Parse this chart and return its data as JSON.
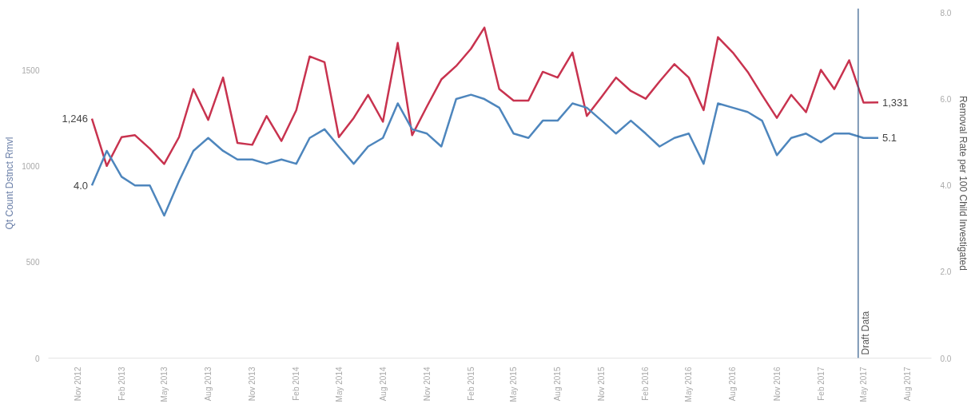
{
  "chart_data": {
    "type": "line",
    "xlabel": null,
    "ylabel": "Qt Count Dstnct Rmvl",
    "y2label": "Removal Rate per 100 Child Investigated",
    "x": [
      "2012-12",
      "2013-01",
      "2013-02",
      "2013-03",
      "2013-04",
      "2013-05",
      "2013-06",
      "2013-07",
      "2013-08",
      "2013-09",
      "2013-10",
      "2013-11",
      "2013-12",
      "2014-01",
      "2014-02",
      "2014-03",
      "2014-04",
      "2014-05",
      "2014-06",
      "2014-07",
      "2014-08",
      "2014-09",
      "2014-10",
      "2014-11",
      "2014-12",
      "2015-01",
      "2015-02",
      "2015-03",
      "2015-04",
      "2015-05",
      "2015-06",
      "2015-07",
      "2015-08",
      "2015-09",
      "2015-10",
      "2015-11",
      "2015-12",
      "2016-01",
      "2016-02",
      "2016-03",
      "2016-04",
      "2016-05",
      "2016-06",
      "2016-07",
      "2016-08",
      "2016-09",
      "2016-10",
      "2016-11",
      "2016-12",
      "2017-01",
      "2017-02",
      "2017-03",
      "2017-04",
      "2017-05",
      "2017-06"
    ],
    "series": [
      {
        "color": "#c8334f",
        "values": [
          1246,
          1000,
          1150,
          1160,
          1090,
          1010,
          1150,
          1400,
          1240,
          1460,
          1120,
          1110,
          1260,
          1130,
          1290,
          1570,
          1540,
          1150,
          1250,
          1370,
          1230,
          1640,
          1160,
          1310,
          1450,
          1520,
          1610,
          1720,
          1400,
          1340,
          1340,
          1490,
          1460,
          1590,
          1260,
          1360,
          1460,
          1390,
          1350,
          1440,
          1530,
          1460,
          1290,
          1670,
          1590,
          1490,
          1370,
          1250,
          1370,
          1280,
          1500,
          1400,
          1550,
          1330,
          1331
        ],
        "value_labels": [
          "1,246",
          null,
          null,
          null,
          null,
          null,
          null,
          null,
          null,
          null,
          null,
          null,
          null,
          null,
          null,
          null,
          null,
          null,
          null,
          null,
          null,
          null,
          null,
          null,
          null,
          null,
          null,
          null,
          null,
          null,
          null,
          null,
          null,
          null,
          null,
          null,
          null,
          null,
          null,
          null,
          null,
          null,
          null,
          null,
          null,
          null,
          null,
          null,
          null,
          null,
          null,
          null,
          null,
          null,
          "1,331"
        ]
      },
      {
        "color": "#4e86bd",
        "axis": "y2",
        "values": [
          4.0,
          4.8,
          4.2,
          4.0,
          4.0,
          3.3,
          4.1,
          4.8,
          5.1,
          4.8,
          4.6,
          4.6,
          4.5,
          4.6,
          4.5,
          5.1,
          5.3,
          4.9,
          4.5,
          4.9,
          5.1,
          5.9,
          5.3,
          5.2,
          4.9,
          6.0,
          6.1,
          6.0,
          5.8,
          5.2,
          5.1,
          5.5,
          5.5,
          5.9,
          5.8,
          5.5,
          5.2,
          5.5,
          5.2,
          4.9,
          5.1,
          5.2,
          4.5,
          5.9,
          5.8,
          5.7,
          5.5,
          4.7,
          5.1,
          5.2,
          5.0,
          5.2,
          5.2,
          5.1,
          5.1
        ],
        "value_labels": [
          "4.0",
          null,
          null,
          null,
          null,
          null,
          null,
          null,
          null,
          null,
          null,
          null,
          null,
          null,
          null,
          null,
          null,
          null,
          null,
          null,
          null,
          null,
          null,
          null,
          null,
          null,
          null,
          null,
          null,
          null,
          null,
          null,
          null,
          null,
          null,
          null,
          null,
          null,
          null,
          null,
          null,
          null,
          null,
          null,
          null,
          null,
          null,
          null,
          null,
          null,
          null,
          null,
          null,
          null,
          "5.1"
        ]
      }
    ],
    "xticks": [
      {
        "value": "2012-11",
        "label": "Nov 2012"
      },
      {
        "value": "2013-02",
        "label": "Feb 2013"
      },
      {
        "value": "2013-05",
        "label": "May 2013"
      },
      {
        "value": "2013-08",
        "label": "Aug 2013"
      },
      {
        "value": "2013-11",
        "label": "Nov 2013"
      },
      {
        "value": "2014-02",
        "label": "Feb 2014"
      },
      {
        "value": "2014-05",
        "label": "May 2014"
      },
      {
        "value": "2014-08",
        "label": "Aug 2014"
      },
      {
        "value": "2014-11",
        "label": "Nov 2014"
      },
      {
        "value": "2015-02",
        "label": "Feb 2015"
      },
      {
        "value": "2015-05",
        "label": "May 2015"
      },
      {
        "value": "2015-08",
        "label": "Aug 2015"
      },
      {
        "value": "2015-11",
        "label": "Nov 2015"
      },
      {
        "value": "2016-02",
        "label": "Feb 2016"
      },
      {
        "value": "2016-05",
        "label": "May 2016"
      },
      {
        "value": "2016-08",
        "label": "Aug 2016"
      },
      {
        "value": "2016-11",
        "label": "Nov 2016"
      },
      {
        "value": "2017-02",
        "label": "Feb 2017"
      },
      {
        "value": "2017-05",
        "label": "May 2017"
      },
      {
        "value": "2017-08",
        "label": "Aug 2017"
      }
    ],
    "xlim": [
      "2012-09-01",
      "2017-09-20"
    ],
    "ylim": [
      0,
      1820
    ],
    "yticks": [
      0,
      500,
      1000,
      1500
    ],
    "y2lim": [
      0,
      8.1
    ],
    "y2ticks": [
      {
        "value": 0,
        "label": "0.0"
      },
      {
        "value": 2,
        "label": "2.0"
      },
      {
        "value": 4,
        "label": "4.0"
      },
      {
        "value": 6,
        "label": "6.0"
      },
      {
        "value": 8,
        "label": "8.0"
      }
    ],
    "ref_lines": [
      {
        "axis": "x",
        "value": "2017-04-20",
        "label": "Draft Data",
        "color": "#2f5a8a"
      }
    ],
    "grid": false
  }
}
